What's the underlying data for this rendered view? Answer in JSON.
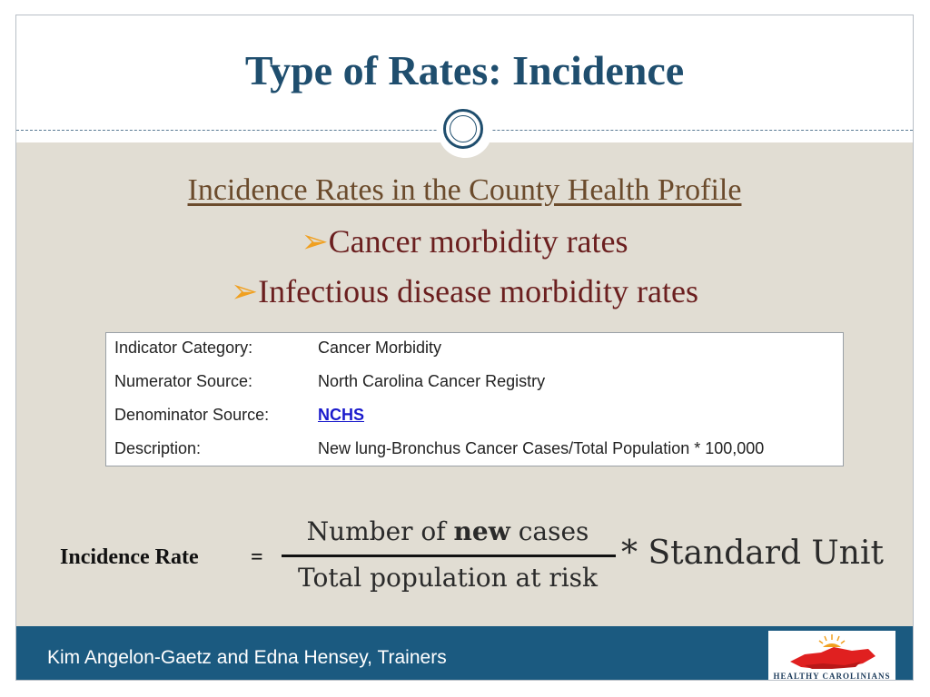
{
  "slide": {
    "title": "Type of Rates: Incidence",
    "heading": "Incidence Rates in the County Health Profile",
    "bullets": [
      "Cancer morbidity rates",
      "Infectious disease morbidity rates"
    ],
    "bullet_icon": "arrow-bullet-icon"
  },
  "indicator_table": {
    "rows": [
      {
        "label": "Indicator Category:",
        "value": "Cancer Morbidity"
      },
      {
        "label": "Numerator Source:",
        "value": "North Carolina Cancer Registry"
      },
      {
        "label": "Denominator Source:",
        "value": "NCHS"
      },
      {
        "label": "Description:",
        "value": "New lung-Bronchus Cancer Cases/Total Population * 100,000"
      }
    ]
  },
  "formula": {
    "label": "Incidence Rate",
    "equals": "=",
    "numerator_prefix": "Number of ",
    "numerator_bold": "new",
    "numerator_suffix": " cases",
    "denominator": "Total population at risk",
    "multiplier": "* Standard Unit"
  },
  "footer": {
    "text": "Kim Angelon-Gaetz and Edna Hensey, Trainers",
    "logo_text": "HEALTHY CAROLINIANS"
  },
  "colors": {
    "title": "#1f4e6e",
    "body_background": "#e1ddd3",
    "footer_background": "#1b5a80",
    "heading": "#6b4b2c",
    "bullet_text": "#6b1f1f",
    "bullet_arrow": "#f0a020",
    "link": "#1a1acc"
  }
}
